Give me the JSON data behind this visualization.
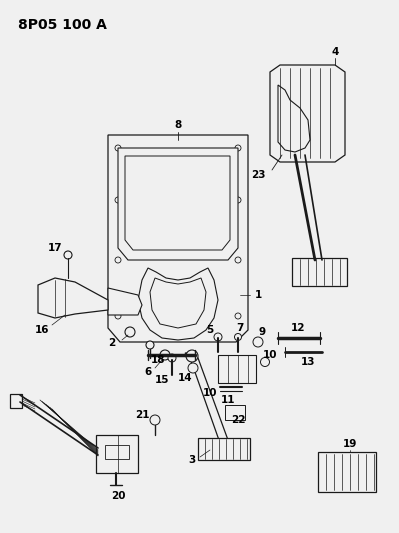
{
  "title": "8P05 100 A",
  "bg_color": "#f0f0f0",
  "line_color": "#1a1a1a",
  "text_color": "#000000",
  "title_fontsize": 10,
  "label_fontsize": 7.5,
  "fig_width": 3.99,
  "fig_height": 5.33,
  "dpi": 100
}
